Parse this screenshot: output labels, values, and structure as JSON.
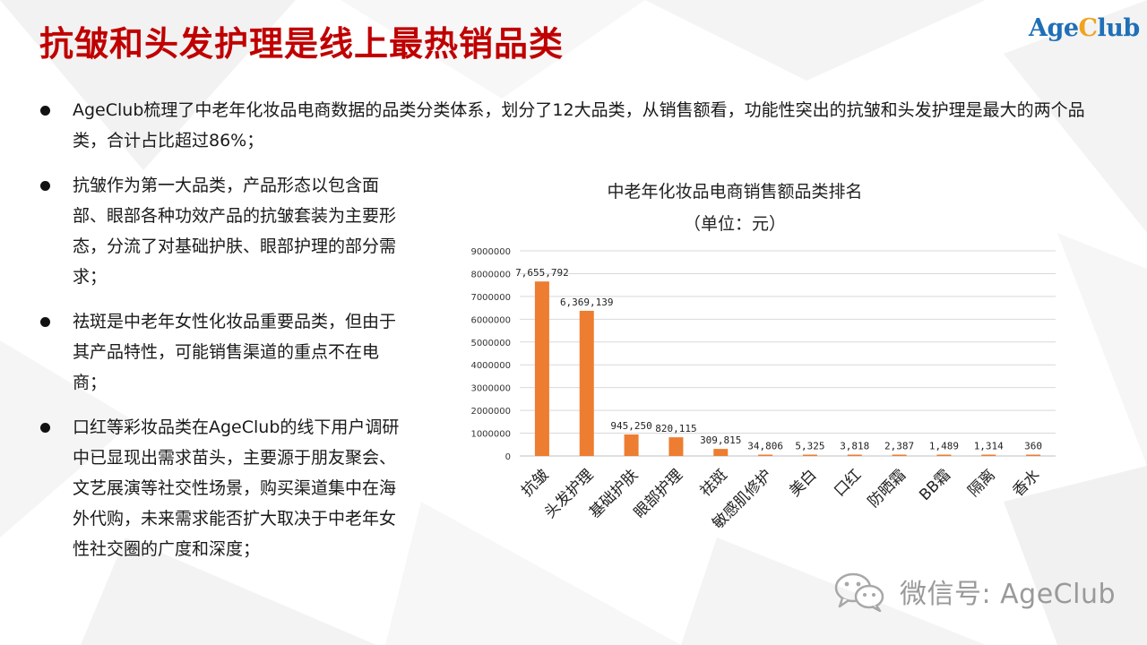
{
  "title": "抗皱和头发护理是线上最热销品类",
  "logo": {
    "part1": "Age",
    "part2": "C",
    "part3": "lub"
  },
  "bullets": [
    "AgeClub梳理了中老年化妆品电商数据的品类分类体系，划分了12大品类，从销售额看，功能性突出的抗皱和头发护理是最大的两个品类，合计占比超过86%；",
    "抗皱作为第一大品类，产品形态以包含面部、眼部各种功效产品的抗皱套装为主要形态，分流了对基础护肤、眼部护理的部分需求；",
    "祛斑是中老年女性化妆品重要品类，但由于其产品特性，可能销售渠道的重点不在电商；",
    "口红等彩妆品类在AgeClub的线下用户调研中已显现出需求苗头，主要源于朋友聚会、文艺展演等社交性场景，购买渠道集中在海外代购，未来需求能否扩大取决于中老年女性社交圈的广度和深度；"
  ],
  "chart_data": {
    "type": "bar",
    "title": "中老年化妆品电商销售额品类排名",
    "subtitle": "（单位：元）",
    "categories": [
      "抗皱",
      "头发护理",
      "基础护肤",
      "眼部护理",
      "祛斑",
      "敏感肌修护",
      "美白",
      "口红",
      "防晒霜",
      "BB霜",
      "隔离",
      "香水"
    ],
    "values": [
      7655792,
      6369139,
      945250,
      820115,
      309815,
      34806,
      5325,
      3818,
      2387,
      1489,
      1314,
      360
    ],
    "data_labels": [
      "7,655,792",
      "6,369,139",
      "945,250",
      "820,115",
      "309,815",
      "34,806",
      "5,325",
      "3,818",
      "2,387",
      "1,489",
      "1,314",
      "360"
    ],
    "y_ticks": [
      "0",
      "1000000",
      "2000000",
      "3000000",
      "4000000",
      "5000000",
      "6000000",
      "7000000",
      "8000000",
      "9000000"
    ],
    "ylim": [
      0,
      9000000
    ],
    "grid": true,
    "bar_color": "#ed7d31"
  },
  "watermark": "微信号: AgeClub",
  "watermark_icon": "wechat-icon",
  "colors": {
    "title": "#c00000",
    "logo_blue": "#1f6fb7",
    "logo_orange": "#f0a41c",
    "grid": "#d9d9d9"
  }
}
